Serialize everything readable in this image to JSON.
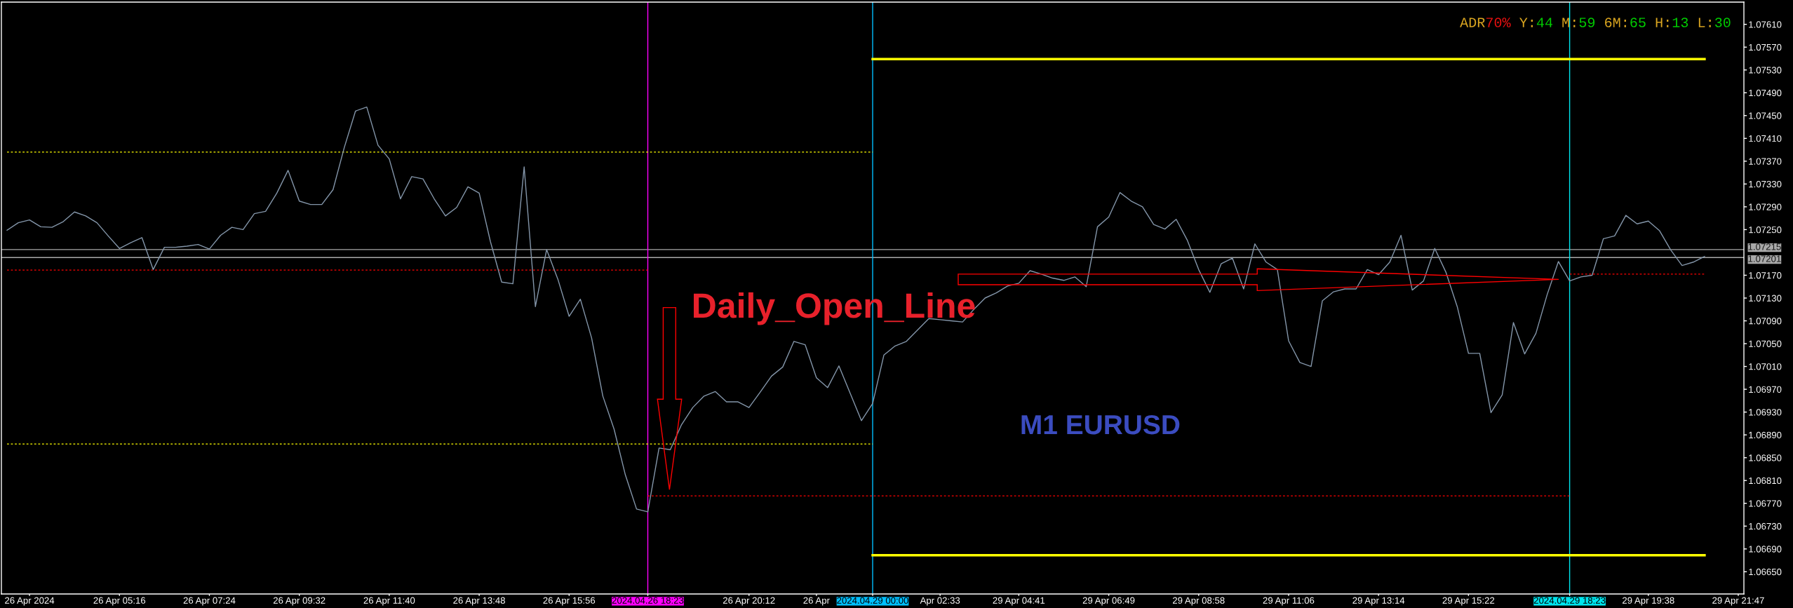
{
  "chart_data": {
    "type": "line",
    "annotations": [
      "Daily_Open_Line",
      "M1 EURUSD",
      "ADR70%",
      "Y:44",
      "M:59",
      "6M:65",
      "H:13",
      "L:30"
    ],
    "ylim": [
      1.06611,
      1.07649
    ],
    "yticks": [
      {
        "value": 1.0761,
        "label": "1.07610"
      },
      {
        "value": 1.0757,
        "label": "1.07570"
      },
      {
        "value": 1.0753,
        "label": "1.07530"
      },
      {
        "value": 1.0749,
        "label": "1.07490"
      },
      {
        "value": 1.0745,
        "label": "1.07450"
      },
      {
        "value": 1.0741,
        "label": "1.07410"
      },
      {
        "value": 1.0737,
        "label": "1.07370"
      },
      {
        "value": 1.0733,
        "label": "1.07330"
      },
      {
        "value": 1.0729,
        "label": "1.07290"
      },
      {
        "value": 1.0725,
        "label": "1.07250"
      },
      {
        "value": 1.0717,
        "label": "1.07170"
      },
      {
        "value": 1.0713,
        "label": "1.07130"
      },
      {
        "value": 1.0709,
        "label": "1.07090"
      },
      {
        "value": 1.0705,
        "label": "1.07050"
      },
      {
        "value": 1.0701,
        "label": "1.07010"
      },
      {
        "value": 1.0697,
        "label": "1.06970"
      },
      {
        "value": 1.0693,
        "label": "1.06930"
      },
      {
        "value": 1.0689,
        "label": "1.06890"
      },
      {
        "value": 1.0685,
        "label": "1.06850"
      },
      {
        "value": 1.0681,
        "label": "1.06810"
      },
      {
        "value": 1.0677,
        "label": "1.06770"
      },
      {
        "value": 1.0673,
        "label": "1.06730"
      },
      {
        "value": 1.0669,
        "label": "1.06690"
      },
      {
        "value": 1.0665,
        "label": "1.06650"
      }
    ],
    "categories": [
      null,
      null,
      "26 Apr 2024",
      null,
      null,
      null,
      null,
      null,
      null,
      null,
      "26 Apr 05:16",
      null,
      null,
      null,
      null,
      null,
      null,
      null,
      "26 Apr 07:24",
      null,
      null,
      null,
      null,
      null,
      null,
      null,
      "26 Apr 09:32",
      null,
      null,
      null,
      null,
      null,
      null,
      null,
      "26 Apr 11:40",
      null,
      null,
      null,
      null,
      null,
      null,
      null,
      "26 Apr 13:48",
      null,
      null,
      null,
      null,
      null,
      null,
      null,
      "26 Apr 15:56",
      null,
      null,
      null,
      null,
      null,
      null,
      "2024.04.26 18:23",
      null,
      null,
      null,
      null,
      null,
      null,
      null,
      null,
      "26 Apr 20:12",
      null,
      null,
      null,
      null,
      null,
      "26 Apr",
      null,
      null,
      null,
      null,
      "2024.04.29 00:00",
      null,
      null,
      null,
      null,
      null,
      "Apr 02:33",
      null,
      null,
      null,
      null,
      null,
      null,
      "29 Apr 04:41",
      null,
      null,
      null,
      null,
      null,
      null,
      null,
      "29 Apr 06:49",
      null,
      null,
      null,
      null,
      null,
      null,
      null,
      "29 Apr 08:58",
      null,
      null,
      null,
      null,
      null,
      null,
      null,
      "29 Apr 11:06",
      null,
      null,
      null,
      null,
      null,
      null,
      null,
      "29 Apr 13:14",
      null,
      null,
      null,
      null,
      null,
      null,
      null,
      "29 Apr 15:22",
      null,
      null,
      null,
      null,
      null,
      null,
      null,
      null,
      "2024.04.29 18:23",
      null,
      null,
      null,
      null,
      null,
      null,
      "29 Apr 19:38",
      null,
      null,
      null,
      null,
      null,
      null,
      null,
      "29 Apr 21:47"
    ],
    "ref_lines": [
      {
        "axis": "y",
        "value": 1.07215,
        "label": "1.07215",
        "color": "#a9a9a9"
      },
      {
        "axis": "y",
        "value": 1.07201,
        "label": "1.07201",
        "color": "#a9a9a9"
      },
      {
        "axis": "x",
        "value": "2024.04.26 18:23",
        "color": "#ff00ff"
      },
      {
        "axis": "x",
        "value": "2024.04.29 00:00",
        "color": "#00bfff"
      },
      {
        "axis": "x",
        "value": "2024.04.29 18:23",
        "color": "#00e5ee"
      }
    ],
    "series": [
      {
        "color": "#ffff00",
        "line_style": "dotted",
        "values": [
          1.07386,
          1.07386,
          1.07386,
          1.07386,
          1.07386,
          1.07386,
          1.07386,
          1.07386,
          1.07386,
          1.07386,
          1.07386,
          1.07386,
          1.07386,
          1.07386,
          1.07386,
          1.07386,
          1.07386,
          1.07386,
          1.07386,
          1.07386,
          1.07386,
          1.07386,
          1.07386,
          1.07386,
          1.07386,
          1.07386,
          1.07386,
          1.07386,
          1.07386,
          1.07386,
          1.07386,
          1.07386,
          1.07386,
          1.07386,
          1.07386,
          1.07386,
          1.07386,
          1.07386,
          1.07386,
          1.07386,
          1.07386,
          1.07386,
          1.07386,
          1.07386,
          1.07386,
          1.07386,
          1.07386,
          1.07386,
          1.07386,
          1.07386,
          1.07386,
          1.07386,
          1.07386,
          1.07386,
          1.07386,
          1.07386,
          1.07386,
          1.07386,
          1.07386,
          1.07386,
          1.07386,
          1.07386,
          1.07386,
          1.07386,
          1.07386,
          1.07386,
          1.07386,
          1.07386,
          1.07386,
          1.07386,
          1.07386,
          1.07386,
          1.07386,
          1.07386,
          1.07386,
          1.07386,
          1.07386,
          1.07386,
          null,
          null,
          null,
          null,
          null,
          null,
          null,
          null,
          null,
          null,
          null,
          null,
          null,
          null,
          null,
          null,
          null,
          null,
          null,
          null,
          null,
          null,
          null,
          null,
          null,
          null,
          null,
          null,
          null,
          null,
          null,
          null,
          null,
          null,
          null,
          null,
          null,
          null,
          null,
          null,
          null,
          null,
          null,
          null,
          null,
          null,
          null,
          null,
          null,
          null,
          null,
          null,
          null,
          null,
          null,
          null,
          null,
          null,
          null,
          null,
          null,
          null,
          null,
          null,
          null,
          null,
          null,
          null,
          null,
          null,
          null,
          null,
          null,
          null,
          null,
          null,
          null
        ]
      },
      {
        "color": "#ffff00",
        "line_style": "dotted",
        "values": [
          1.06874,
          1.06874,
          1.06874,
          1.06874,
          1.06874,
          1.06874,
          1.06874,
          1.06874,
          1.06874,
          1.06874,
          1.06874,
          1.06874,
          1.06874,
          1.06874,
          1.06874,
          1.06874,
          1.06874,
          1.06874,
          1.06874,
          1.06874,
          1.06874,
          1.06874,
          1.06874,
          1.06874,
          1.06874,
          1.06874,
          1.06874,
          1.06874,
          1.06874,
          1.06874,
          1.06874,
          1.06874,
          1.06874,
          1.06874,
          1.06874,
          1.06874,
          1.06874,
          1.06874,
          1.06874,
          1.06874,
          1.06874,
          1.06874,
          1.06874,
          1.06874,
          1.06874,
          1.06874,
          1.06874,
          1.06874,
          1.06874,
          1.06874,
          1.06874,
          1.06874,
          1.06874,
          1.06874,
          1.06874,
          1.06874,
          1.06874,
          1.06874,
          1.06874,
          1.06874,
          1.06874,
          1.06874,
          1.06874,
          1.06874,
          1.06874,
          1.06874,
          1.06874,
          1.06874,
          1.06874,
          1.06874,
          1.06874,
          1.06874,
          1.06874,
          1.06874,
          1.06874,
          1.06874,
          1.06874,
          1.06874,
          null,
          null,
          null,
          null,
          null,
          null,
          null,
          null,
          null,
          null,
          null,
          null,
          null,
          null,
          null,
          null,
          null,
          null,
          null,
          null,
          null,
          null,
          null,
          null,
          null,
          null,
          null,
          null,
          null,
          null,
          null,
          null,
          null,
          null,
          null,
          null,
          null,
          null,
          null,
          null,
          null,
          null,
          null,
          null,
          null,
          null,
          null,
          null,
          null,
          null,
          null,
          null,
          null,
          null,
          null,
          null,
          null,
          null,
          null,
          null,
          null,
          null,
          null,
          null,
          null,
          null,
          null,
          null,
          null,
          null,
          null,
          null,
          null,
          null,
          null,
          null,
          null
        ]
      },
      {
        "color": "#ff0000",
        "line_style": "dotted",
        "values": [
          1.07179,
          1.07179,
          1.07179,
          1.07179,
          1.07179,
          1.07179,
          1.07179,
          1.07179,
          1.07179,
          1.07179,
          1.07179,
          1.07179,
          1.07179,
          1.07179,
          1.07179,
          1.07179,
          1.07179,
          1.07179,
          1.07179,
          1.07179,
          1.07179,
          1.07179,
          1.07179,
          1.07179,
          1.07179,
          1.07179,
          1.07179,
          1.07179,
          1.07179,
          1.07179,
          1.07179,
          1.07179,
          1.07179,
          1.07179,
          1.07179,
          1.07179,
          1.07179,
          1.07179,
          1.07179,
          1.07179,
          1.07179,
          1.07179,
          1.07179,
          1.07179,
          1.07179,
          1.07179,
          1.07179,
          1.07179,
          1.07179,
          1.07179,
          1.07179,
          1.07179,
          1.07179,
          1.07179,
          1.07179,
          1.07179,
          1.07179,
          1.07179,
          null,
          null,
          null,
          null,
          null,
          null,
          null,
          null,
          null,
          null,
          null,
          null,
          null,
          null,
          null,
          null,
          null,
          null,
          null,
          null,
          null,
          null,
          null,
          null,
          null,
          null,
          null,
          null,
          null,
          null,
          null,
          null,
          null,
          null,
          null,
          null,
          null,
          null,
          null,
          null,
          null,
          null,
          null,
          null,
          null,
          null,
          null,
          null,
          null,
          null,
          null,
          null,
          null,
          null,
          null,
          null,
          null,
          null,
          null,
          null,
          null,
          null,
          null,
          null,
          null,
          null,
          null,
          null,
          null,
          null,
          null,
          null,
          null,
          null,
          null,
          null,
          null,
          null,
          null,
          null,
          null,
          null,
          null,
          null,
          null,
          null,
          null,
          null,
          null,
          null,
          null,
          null,
          null,
          null,
          null,
          null,
          null
        ]
      },
      {
        "color": "#ff0000",
        "line_style": "dotted",
        "values": [
          null,
          null,
          null,
          null,
          null,
          null,
          null,
          null,
          null,
          null,
          null,
          null,
          null,
          null,
          null,
          null,
          null,
          null,
          null,
          null,
          null,
          null,
          null,
          null,
          null,
          null,
          null,
          null,
          null,
          null,
          null,
          null,
          null,
          null,
          null,
          null,
          null,
          null,
          null,
          null,
          null,
          null,
          null,
          null,
          null,
          null,
          null,
          null,
          null,
          null,
          null,
          null,
          null,
          null,
          null,
          null,
          null,
          1.06783,
          1.06783,
          1.06783,
          1.06783,
          1.06783,
          1.06783,
          1.06783,
          1.06783,
          1.06783,
          1.06783,
          1.06783,
          1.06783,
          1.06783,
          1.06783,
          1.06783,
          1.06783,
          1.06783,
          1.06783,
          1.06783,
          1.06783,
          1.06783,
          1.06783,
          1.06783,
          1.06783,
          1.06783,
          1.06783,
          1.06783,
          1.06783,
          1.06783,
          1.06783,
          1.06783,
          1.06783,
          1.06783,
          1.06783,
          1.06783,
          1.06783,
          1.06783,
          1.06783,
          1.06783,
          1.06783,
          1.06783,
          1.06783,
          1.06783,
          1.06783,
          1.06783,
          1.06783,
          1.06783,
          1.06783,
          1.06783,
          1.06783,
          1.06783,
          1.06783,
          1.06783,
          1.06783,
          1.06783,
          1.06783,
          1.06783,
          1.06783,
          1.06783,
          1.06783,
          1.06783,
          1.06783,
          1.06783,
          1.06783,
          1.06783,
          1.06783,
          1.06783,
          1.06783,
          1.06783,
          1.06783,
          1.06783,
          1.06783,
          1.06783,
          1.06783,
          1.06783,
          1.06783,
          1.06783,
          1.06783,
          1.06783,
          1.06783,
          1.06783,
          1.06783,
          1.06783,
          null,
          null,
          null,
          null,
          null,
          null,
          null,
          null,
          null,
          null,
          null,
          null,
          null,
          null,
          null
        ]
      },
      {
        "color": "#ff0000",
        "line_style": "dotted",
        "values": [
          null,
          null,
          null,
          null,
          null,
          null,
          null,
          null,
          null,
          null,
          null,
          null,
          null,
          null,
          null,
          null,
          null,
          null,
          null,
          null,
          null,
          null,
          null,
          null,
          null,
          null,
          null,
          null,
          null,
          null,
          null,
          null,
          null,
          null,
          null,
          null,
          null,
          null,
          null,
          null,
          null,
          null,
          null,
          null,
          null,
          null,
          null,
          null,
          null,
          null,
          null,
          null,
          null,
          null,
          null,
          null,
          null,
          null,
          null,
          null,
          null,
          null,
          null,
          null,
          null,
          null,
          null,
          null,
          null,
          null,
          null,
          null,
          null,
          null,
          null,
          null,
          null,
          null,
          null,
          null,
          null,
          null,
          null,
          null,
          null,
          null,
          null,
          null,
          null,
          null,
          null,
          null,
          null,
          null,
          null,
          null,
          null,
          null,
          null,
          null,
          null,
          null,
          null,
          null,
          null,
          null,
          null,
          null,
          null,
          null,
          null,
          null,
          null,
          null,
          null,
          null,
          null,
          null,
          null,
          null,
          null,
          null,
          null,
          null,
          null,
          null,
          null,
          null,
          null,
          null,
          null,
          null,
          null,
          null,
          null,
          null,
          null,
          null,
          null,
          1.07172,
          1.07172,
          1.07172,
          1.07172,
          1.07172,
          1.07172,
          1.07172,
          1.07172,
          1.07172,
          1.07172,
          1.07172,
          1.07172,
          1.07172,
          null,
          null,
          null
        ]
      },
      {
        "color": "#ffff00",
        "line_style": "solid",
        "values": [
          null,
          null,
          null,
          null,
          null,
          null,
          null,
          null,
          null,
          null,
          null,
          null,
          null,
          null,
          null,
          null,
          null,
          null,
          null,
          null,
          null,
          null,
          null,
          null,
          null,
          null,
          null,
          null,
          null,
          null,
          null,
          null,
          null,
          null,
          null,
          null,
          null,
          null,
          null,
          null,
          null,
          null,
          null,
          null,
          null,
          null,
          null,
          null,
          null,
          null,
          null,
          null,
          null,
          null,
          null,
          null,
          null,
          null,
          null,
          null,
          null,
          null,
          null,
          null,
          null,
          null,
          null,
          null,
          null,
          null,
          null,
          null,
          null,
          null,
          null,
          null,
          null,
          1.07549,
          1.07549,
          1.07549,
          1.07549,
          1.07549,
          1.07549,
          1.07549,
          1.07549,
          1.07549,
          1.07549,
          1.07549,
          1.07549,
          1.07549,
          1.07549,
          1.07549,
          1.07549,
          1.07549,
          1.07549,
          1.07549,
          1.07549,
          1.07549,
          1.07549,
          1.07549,
          1.07549,
          1.07549,
          1.07549,
          1.07549,
          1.07549,
          1.07549,
          1.07549,
          1.07549,
          1.07549,
          1.07549,
          1.07549,
          1.07549,
          1.07549,
          1.07549,
          1.07549,
          1.07549,
          1.07549,
          1.07549,
          1.07549,
          1.07549,
          1.07549,
          1.07549,
          1.07549,
          1.07549,
          1.07549,
          1.07549,
          1.07549,
          1.07549,
          1.07549,
          1.07549,
          1.07549,
          1.07549,
          1.07549,
          1.07549,
          1.07549,
          1.07549,
          1.07549,
          1.07549,
          1.07549,
          1.07549,
          1.07549,
          1.07549,
          1.07549,
          1.07549,
          1.07549,
          1.07549,
          1.07549,
          1.07549,
          1.07549,
          1.07549,
          1.07549,
          1.07549,
          null,
          null,
          null
        ]
      },
      {
        "color": "#ffff00",
        "line_style": "solid",
        "values": [
          null,
          null,
          null,
          null,
          null,
          null,
          null,
          null,
          null,
          null,
          null,
          null,
          null,
          null,
          null,
          null,
          null,
          null,
          null,
          null,
          null,
          null,
          null,
          null,
          null,
          null,
          null,
          null,
          null,
          null,
          null,
          null,
          null,
          null,
          null,
          null,
          null,
          null,
          null,
          null,
          null,
          null,
          null,
          null,
          null,
          null,
          null,
          null,
          null,
          null,
          null,
          null,
          null,
          null,
          null,
          null,
          null,
          null,
          null,
          null,
          null,
          null,
          null,
          null,
          null,
          null,
          null,
          null,
          null,
          null,
          null,
          null,
          null,
          null,
          null,
          null,
          null,
          1.06679,
          1.06679,
          1.06679,
          1.06679,
          1.06679,
          1.06679,
          1.06679,
          1.06679,
          1.06679,
          1.06679,
          1.06679,
          1.06679,
          1.06679,
          1.06679,
          1.06679,
          1.06679,
          1.06679,
          1.06679,
          1.06679,
          1.06679,
          1.06679,
          1.06679,
          1.06679,
          1.06679,
          1.06679,
          1.06679,
          1.06679,
          1.06679,
          1.06679,
          1.06679,
          1.06679,
          1.06679,
          1.06679,
          1.06679,
          1.06679,
          1.06679,
          1.06679,
          1.06679,
          1.06679,
          1.06679,
          1.06679,
          1.06679,
          1.06679,
          1.06679,
          1.06679,
          1.06679,
          1.06679,
          1.06679,
          1.06679,
          1.06679,
          1.06679,
          1.06679,
          1.06679,
          1.06679,
          1.06679,
          1.06679,
          1.06679,
          1.06679,
          1.06679,
          1.06679,
          1.06679,
          1.06679,
          1.06679,
          1.06679,
          1.06679,
          1.06679,
          1.06679,
          1.06679,
          1.06679,
          1.06679,
          1.06679,
          1.06679,
          1.06679,
          1.06679,
          1.06679,
          null,
          null,
          null
        ]
      },
      {
        "color": "#8496aa",
        "values": [
          1.07249,
          1.07262,
          1.07267,
          1.07255,
          1.07254,
          1.07264,
          1.07281,
          1.07274,
          1.07262,
          1.07239,
          1.07217,
          1.07227,
          1.07236,
          1.0718,
          1.07219,
          1.07219,
          1.07221,
          1.07224,
          1.07216,
          1.0724,
          1.07254,
          1.0725,
          1.07278,
          1.07282,
          1.07314,
          1.07354,
          1.073,
          1.07294,
          1.07294,
          1.0732,
          1.07394,
          1.07458,
          1.07465,
          1.07398,
          1.07374,
          1.07304,
          1.07343,
          1.07339,
          1.07304,
          1.07274,
          1.07289,
          1.07325,
          1.07314,
          1.07229,
          1.07158,
          1.07155,
          1.0736,
          1.07115,
          1.07215,
          1.07163,
          1.07098,
          1.07128,
          1.0706,
          1.06958,
          1.069,
          1.0682,
          1.0676,
          1.06755,
          1.06867,
          1.06864,
          1.06908,
          1.06938,
          1.06958,
          1.06966,
          1.06948,
          1.06948,
          1.06938,
          1.06965,
          1.06993,
          1.07009,
          1.07054,
          1.07048,
          1.0699,
          1.06973,
          1.07011,
          1.06963,
          1.06915,
          1.06945,
          1.0703,
          1.07046,
          1.07054,
          1.07074,
          1.07094,
          1.07092,
          1.0709,
          1.07088,
          1.0711,
          1.0713,
          1.07139,
          1.07151,
          1.07156,
          1.07178,
          1.07172,
          1.07165,
          1.07161,
          1.07167,
          1.0715,
          1.07255,
          1.07272,
          1.07315,
          1.073,
          1.0729,
          1.07259,
          1.07251,
          1.07268,
          1.07231,
          1.0718,
          1.0714,
          1.0719,
          1.072,
          1.07146,
          1.07225,
          1.07193,
          1.0718,
          1.07055,
          1.07017,
          1.0701,
          1.07125,
          1.07141,
          1.07146,
          1.07146,
          1.0718,
          1.07171,
          1.07193,
          1.0724,
          1.07144,
          1.0716,
          1.07217,
          1.07175,
          1.07115,
          1.07033,
          1.07033,
          1.06929,
          1.0696,
          1.07087,
          1.07032,
          1.07068,
          1.07136,
          1.07194,
          1.0716,
          1.07167,
          1.0717,
          1.07234,
          1.07239,
          1.07275,
          1.0726,
          1.07265,
          1.07248,
          1.07214,
          1.07187,
          1.07193,
          1.07203,
          null,
          null,
          null
        ]
      }
    ]
  }
}
